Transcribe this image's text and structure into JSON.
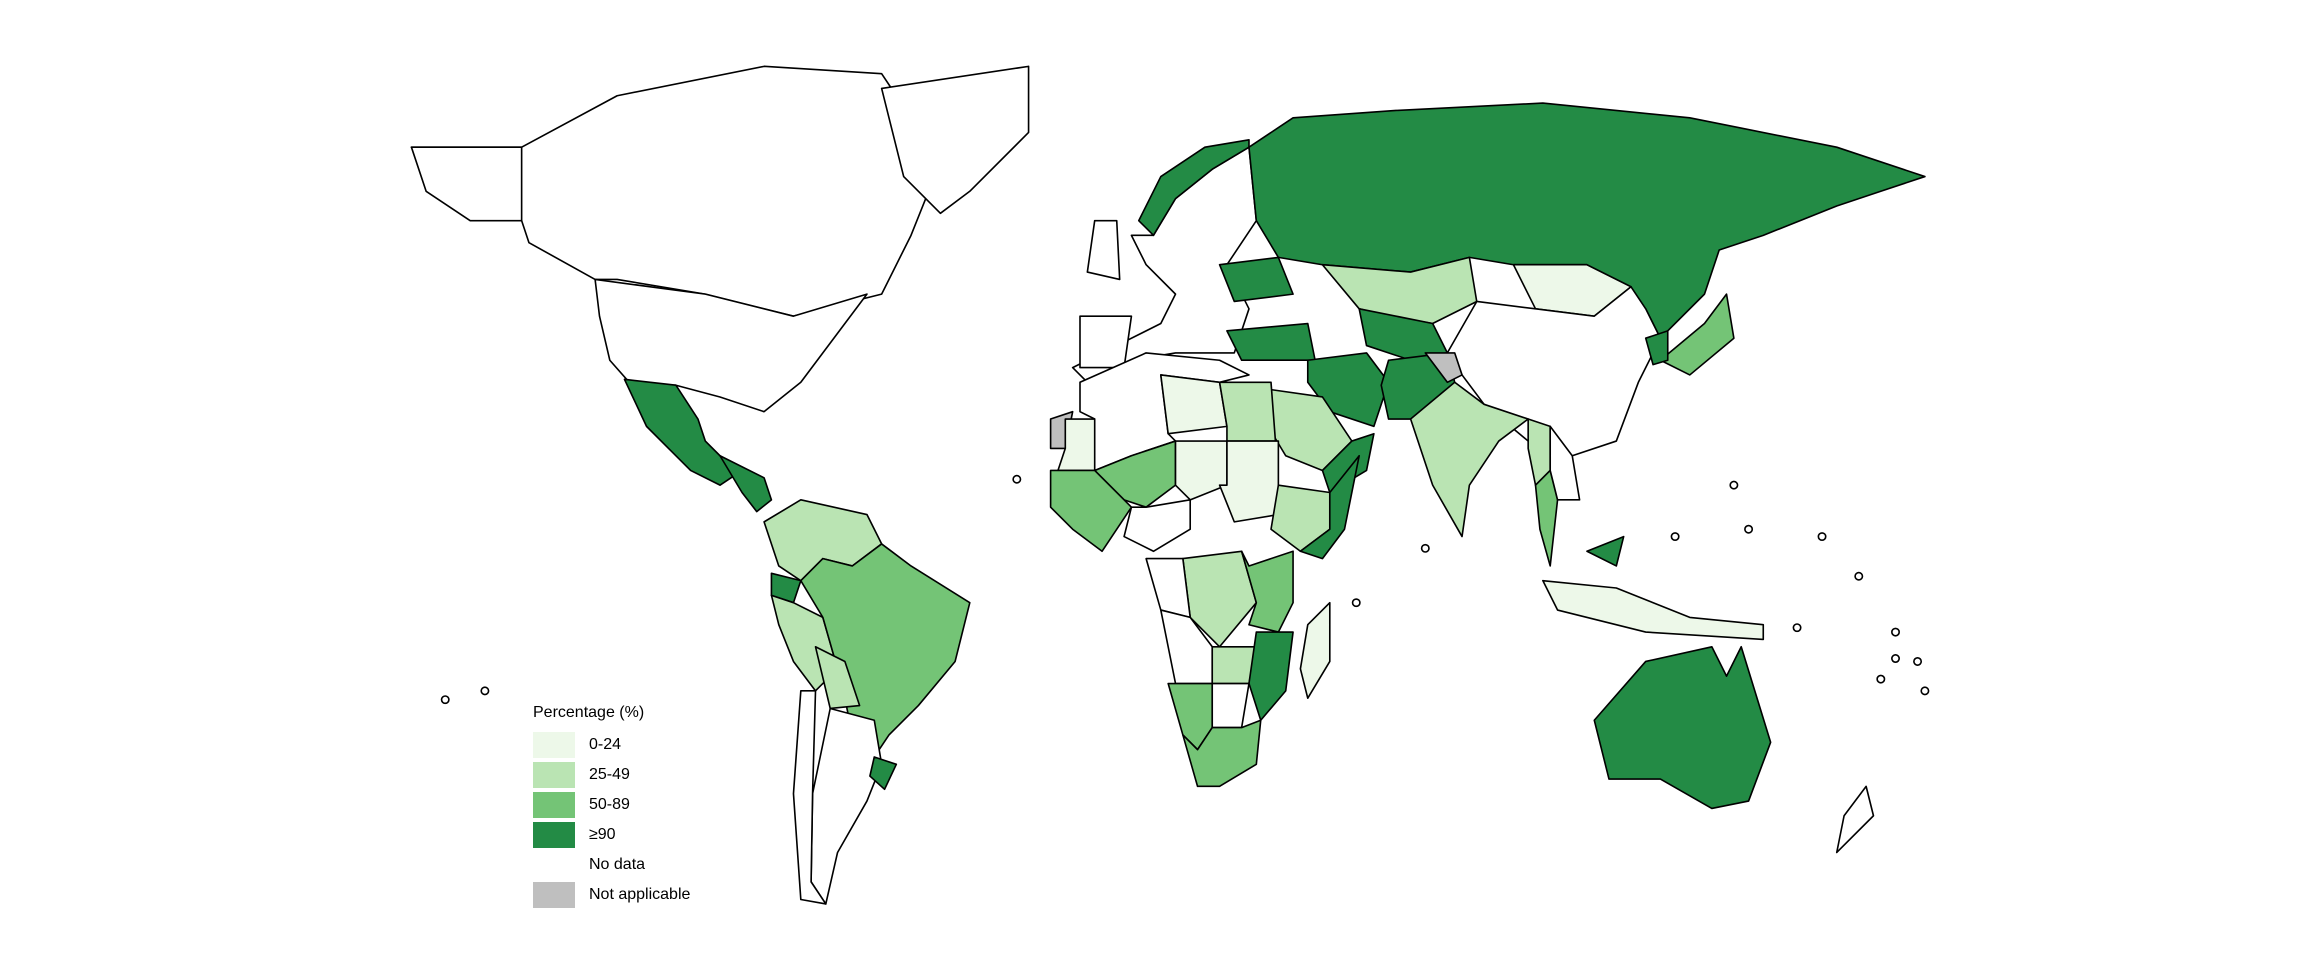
{
  "legend": {
    "title": "Percentage (%)",
    "items": [
      {
        "label": "0-24",
        "color": "#edf8e9"
      },
      {
        "label": "25-49",
        "color": "#bae4b3"
      },
      {
        "label": "50-89",
        "color": "#74c476"
      },
      {
        "label": "≥90",
        "color": "#238b45"
      },
      {
        "label": "No data",
        "color": "#ffffff"
      },
      {
        "label": "Not applicable",
        "color": "#bfbfbf"
      }
    ]
  },
  "regions": [
    {
      "name": "Canada",
      "category": "No data"
    },
    {
      "name": "Alaska",
      "category": "No data"
    },
    {
      "name": "Greenland",
      "category": "No data"
    },
    {
      "name": "United States",
      "category": "No data"
    },
    {
      "name": "Mexico",
      "category": "≥90"
    },
    {
      "name": "Central America",
      "category": "≥90"
    },
    {
      "name": "Colombia-Venezuela",
      "category": "25-49"
    },
    {
      "name": "Ecuador",
      "category": "≥90"
    },
    {
      "name": "Peru",
      "category": "25-49"
    },
    {
      "name": "Brazil",
      "category": "50-89"
    },
    {
      "name": "Bolivia",
      "category": "25-49"
    },
    {
      "name": "Argentina",
      "category": "No data"
    },
    {
      "name": "Chile",
      "category": "No data"
    },
    {
      "name": "Uruguay",
      "category": "≥90"
    },
    {
      "name": "Europe",
      "category": "No data"
    },
    {
      "name": "Norway",
      "category": "≥90"
    },
    {
      "name": "United Kingdom",
      "category": "No data"
    },
    {
      "name": "Iberia",
      "category": "No data"
    },
    {
      "name": "Ukraine",
      "category": "≥90"
    },
    {
      "name": "Turkey",
      "category": "≥90"
    },
    {
      "name": "Russia",
      "category": "≥90"
    },
    {
      "name": "Kazakhstan",
      "category": "25-49"
    },
    {
      "name": "Mongolia",
      "category": "0-24"
    },
    {
      "name": "China",
      "category": "No data"
    },
    {
      "name": "Central Asia",
      "category": "≥90"
    },
    {
      "name": "Iran",
      "category": "≥90"
    },
    {
      "name": "Afghanistan-Pakistan",
      "category": "≥90"
    },
    {
      "name": "Kashmir",
      "category": "Not applicable"
    },
    {
      "name": "India",
      "category": "25-49"
    },
    {
      "name": "Saudi Arabia",
      "category": "25-49"
    },
    {
      "name": "Yemen-Oman",
      "category": "≥90"
    },
    {
      "name": "Myanmar",
      "category": "25-49"
    },
    {
      "name": "Thailand",
      "category": "50-89"
    },
    {
      "name": "Indochina",
      "category": "No data"
    },
    {
      "name": "Malaysia",
      "category": "≥90"
    },
    {
      "name": "Indonesia",
      "category": "0-24"
    },
    {
      "name": "Japan",
      "category": "50-89"
    },
    {
      "name": "Korea",
      "category": "≥90"
    },
    {
      "name": "Australia",
      "category": "≥90"
    },
    {
      "name": "New Zealand",
      "category": "No data"
    },
    {
      "name": "North Africa",
      "category": "No data"
    },
    {
      "name": "Libya",
      "category": "0-24"
    },
    {
      "name": "Egypt",
      "category": "25-49"
    },
    {
      "name": "Western Sahara",
      "category": "Not applicable"
    },
    {
      "name": "Mauritania",
      "category": "0-24"
    },
    {
      "name": "Mali",
      "category": "50-89"
    },
    {
      "name": "Niger",
      "category": "0-24"
    },
    {
      "name": "Sudan-Chad",
      "category": "0-24"
    },
    {
      "name": "Ethiopia",
      "category": "25-49"
    },
    {
      "name": "Somalia",
      "category": "≥90"
    },
    {
      "name": "West Africa",
      "category": "50-89"
    },
    {
      "name": "Nigeria",
      "category": "No data"
    },
    {
      "name": "DR Congo",
      "category": "25-49"
    },
    {
      "name": "Congo-Gabon",
      "category": "No data"
    },
    {
      "name": "Kenya-Tanzania",
      "category": "50-89"
    },
    {
      "name": "Angola",
      "category": "No data"
    },
    {
      "name": "Zambia",
      "category": "25-49"
    },
    {
      "name": "Mozambique",
      "category": "≥90"
    },
    {
      "name": "Namibia",
      "category": "50-89"
    },
    {
      "name": "Botswana",
      "category": "No data"
    },
    {
      "name": "South Africa",
      "category": "50-89"
    },
    {
      "name": "Madagascar",
      "category": "0-24"
    }
  ]
}
